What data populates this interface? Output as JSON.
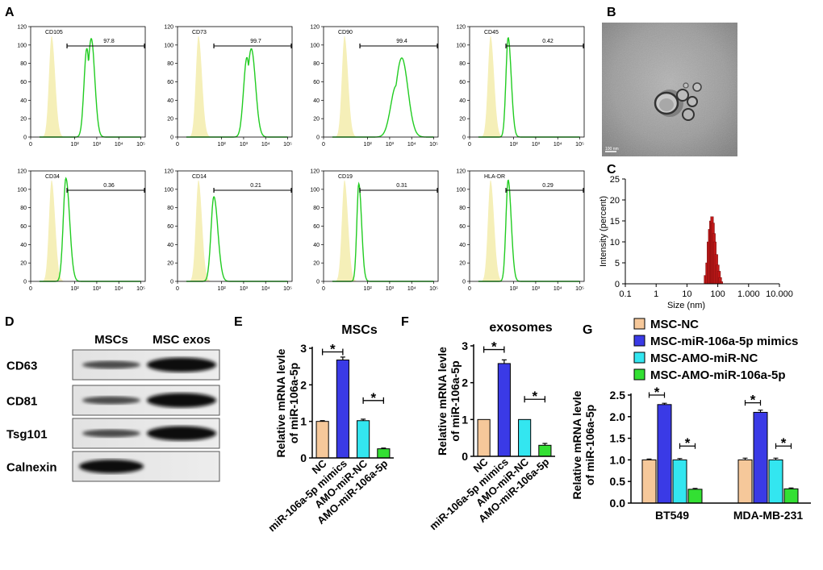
{
  "panels": {
    "A": "A",
    "B": "B",
    "C": "C",
    "D": "D",
    "E": "E",
    "F": "F",
    "G": "G"
  },
  "colors": {
    "iso_fill": "#f5efb8",
    "marker_line": "#22cc22",
    "dls_bar": "#c01818",
    "nc": "#f6c89a",
    "mimics": "#3a3ae6",
    "amo_nc": "#33e6f0",
    "amo_miR": "#33e033"
  },
  "flow": {
    "yticks": [
      "0",
      "20",
      "40",
      "60",
      "80",
      "100",
      "120"
    ],
    "xticks": [
      "0",
      "10²",
      "10³",
      "10⁴",
      "10⁵"
    ],
    "xtick_vals": [
      0,
      2,
      3,
      4,
      5
    ],
    "panels": [
      {
        "marker": "CD105",
        "percent": "97.8",
        "peak": 2.75,
        "height": 107,
        "width": 0.16,
        "shape": "double"
      },
      {
        "marker": "CD73",
        "percent": "99.7",
        "peak": 3.35,
        "height": 96,
        "width": 0.19,
        "shape": "double"
      },
      {
        "marker": "CD90",
        "percent": "99.4",
        "peak": 3.55,
        "height": 86,
        "width": 0.28,
        "shape": "broad"
      },
      {
        "marker": "CD45",
        "percent": "0.42",
        "peak": 1.75,
        "height": 108,
        "width": 0.1,
        "shape": "single"
      },
      {
        "marker": "CD34",
        "percent": "0.36",
        "peak": 1.6,
        "height": 112,
        "width": 0.12,
        "shape": "single"
      },
      {
        "marker": "CD14",
        "percent": "0.21",
        "peak": 1.65,
        "height": 92,
        "width": 0.13,
        "shape": "single"
      },
      {
        "marker": "CD19",
        "percent": "0.31",
        "peak": 1.6,
        "height": 106,
        "width": 0.09,
        "shape": "single"
      },
      {
        "marker": "HLA-DR",
        "percent": "0.29",
        "peak": 1.75,
        "height": 110,
        "width": 0.1,
        "shape": "single"
      }
    ]
  },
  "tem": {
    "scale_label": "100 nm"
  },
  "chart_data": [
    {
      "type": "bar",
      "panel": "C",
      "xlabel": "Size (nm)",
      "ylabel": "Intensity (percent)",
      "xscale": "log",
      "xticks": [
        "0.1",
        "1",
        "10",
        "100",
        "1.000",
        "10.000"
      ],
      "yticks": [
        "0",
        "5",
        "10",
        "15",
        "20",
        "25"
      ],
      "ylim": [
        0,
        25
      ],
      "x": [
        40,
        45,
        50,
        55,
        60,
        65,
        70,
        75,
        80,
        90,
        100,
        110,
        120,
        130
      ],
      "values": [
        2,
        5,
        10,
        13,
        15,
        16,
        14.5,
        12,
        10,
        7,
        4.5,
        3,
        1.5,
        0.5
      ]
    },
    {
      "type": "bar",
      "panel": "E",
      "title": "MSCs",
      "ylabel": "Relative mRNA levle of miR-106a-5p",
      "categories": [
        "NC",
        "miR-106a-5p mimics",
        "AMO-miR-NC",
        "AMO-miR-106a-5p"
      ],
      "values": [
        1.0,
        2.68,
        1.02,
        0.25
      ],
      "errors": [
        0.02,
        0.08,
        0.04,
        0.02
      ],
      "ylim": [
        0,
        3
      ],
      "yticks": [
        "0",
        "1",
        "2",
        "3"
      ],
      "annotations": [
        "*",
        "*"
      ]
    },
    {
      "type": "bar",
      "panel": "F",
      "title": "exosomes",
      "ylabel": "Relative mRNA levle of miR-106a-5p",
      "categories": [
        "NC",
        "miR-106a-5p mimics",
        "AMO-miR-NC",
        "AMO-miR-106a-5p"
      ],
      "values": [
        1.0,
        2.52,
        1.0,
        0.3
      ],
      "errors": [
        0.0,
        0.1,
        0.0,
        0.05
      ],
      "ylim": [
        0,
        3
      ],
      "yticks": [
        "0",
        "1",
        "2",
        "3"
      ],
      "annotations": [
        "*",
        "*"
      ]
    },
    {
      "type": "bar",
      "panel": "G",
      "ylabel": "Relative mRNA levle of miR-106a-5p",
      "categories": [
        "BT549",
        "MDA-MB-231"
      ],
      "series": [
        {
          "name": "MSC-NC",
          "values": [
            1.0,
            1.0
          ],
          "errors": [
            0.02,
            0.04
          ]
        },
        {
          "name": "MSC-miR-106a-5p mimics",
          "values": [
            2.28,
            2.1
          ],
          "errors": [
            0.03,
            0.05
          ]
        },
        {
          "name": "MSC-AMO-miR-NC",
          "values": [
            1.0,
            1.0
          ],
          "errors": [
            0.03,
            0.04
          ]
        },
        {
          "name": "MSC-AMO-miR-106a-5p",
          "values": [
            0.32,
            0.33
          ],
          "errors": [
            0.02,
            0.02
          ]
        }
      ],
      "ylim": [
        0,
        2.5
      ],
      "yticks": [
        "0.0",
        "0.5",
        "1.0",
        "1.5",
        "2.0",
        "2.5"
      ],
      "annotations": [
        "*",
        "*",
        "*",
        "*"
      ],
      "legend": "top"
    }
  ],
  "western": {
    "headers": [
      "MSCs",
      "MSC exos"
    ],
    "rows": [
      {
        "label": "CD63",
        "msc": 0.55,
        "exo": 1.0
      },
      {
        "label": "CD81",
        "msc": 0.5,
        "exo": 1.0
      },
      {
        "label": "Tsg101",
        "msc": 0.5,
        "exo": 1.0
      },
      {
        "label": "Calnexin",
        "msc": 1.0,
        "exo": 0.0
      }
    ]
  }
}
